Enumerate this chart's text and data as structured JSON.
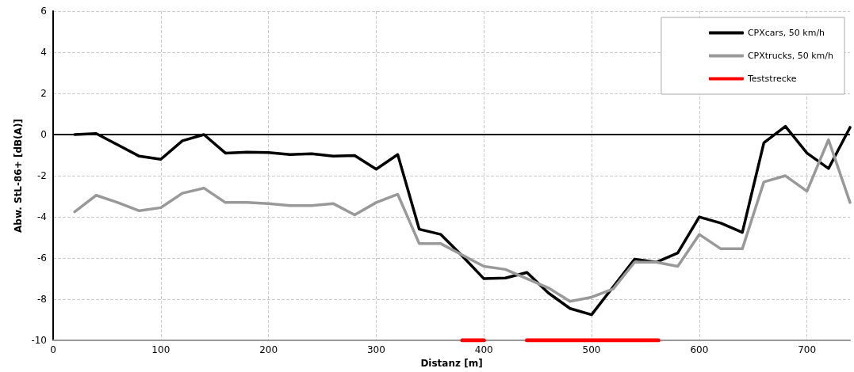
{
  "chart_data": {
    "type": "line",
    "xlabel": "Distanz [m]",
    "ylabel": "Abw. StL-86+ [dB(A)]",
    "x": [
      20,
      40,
      60,
      80,
      100,
      120,
      140,
      160,
      180,
      200,
      220,
      240,
      260,
      280,
      300,
      320,
      340,
      360,
      380,
      400,
      420,
      440,
      460,
      480,
      500,
      520,
      540,
      560,
      580,
      600,
      620,
      640,
      660,
      680,
      700,
      720,
      740
    ],
    "series": [
      {
        "name": "CPXcars, 50 km/h",
        "color": "#000000",
        "values": [
          0,
          0.05,
          -0.5,
          -1.05,
          -1.2,
          -0.3,
          0,
          -0.9,
          -0.85,
          -0.87,
          -0.97,
          -0.93,
          -1.05,
          -1.02,
          -1.68,
          -0.97,
          -4.6,
          -4.85,
          -5.9,
          -7,
          -6.97,
          -6.7,
          -7.7,
          -8.45,
          -8.75,
          -7.4,
          -6.05,
          -6.2,
          -5.75,
          -4,
          -4.3,
          -4.75,
          -0.4,
          0.4,
          -0.9,
          -1.65,
          0.35
        ]
      },
      {
        "name": "CPXtrucks, 50 km/h",
        "color": "#999999",
        "values": [
          -3.75,
          -2.95,
          -3.3,
          -3.7,
          -3.55,
          -2.85,
          -2.6,
          -3.3,
          -3.3,
          -3.35,
          -3.45,
          -3.45,
          -3.35,
          -3.9,
          -3.3,
          -2.9,
          -5.3,
          -5.3,
          -5.85,
          -6.4,
          -6.55,
          -7,
          -7.45,
          -8.1,
          -7.9,
          -7.5,
          -6.2,
          -6.2,
          -6.4,
          -4.85,
          -5.55,
          -5.55,
          -2.3,
          -2,
          -2.75,
          -0.25,
          -3.3
        ]
      },
      {
        "name": "Teststrecke",
        "color": "#ff0000",
        "x": [
          380,
          400,
          420,
          440,
          562
        ],
        "values": [
          -10,
          -10,
          null,
          -10,
          -10
        ]
      }
    ],
    "xlim": [
      0,
      740
    ],
    "xticks": [
      0,
      100,
      200,
      300,
      400,
      500,
      600,
      700
    ],
    "ylim": [
      -10,
      6
    ],
    "yticks": [
      -10,
      -8,
      -6,
      -4,
      -2,
      0,
      2,
      4,
      6
    ],
    "ref_lines": [
      {
        "axis": "y",
        "value": 0,
        "color": "#000000"
      }
    ],
    "grid": true,
    "legend": "top right",
    "marker": "none",
    "line_style": "solid"
  }
}
